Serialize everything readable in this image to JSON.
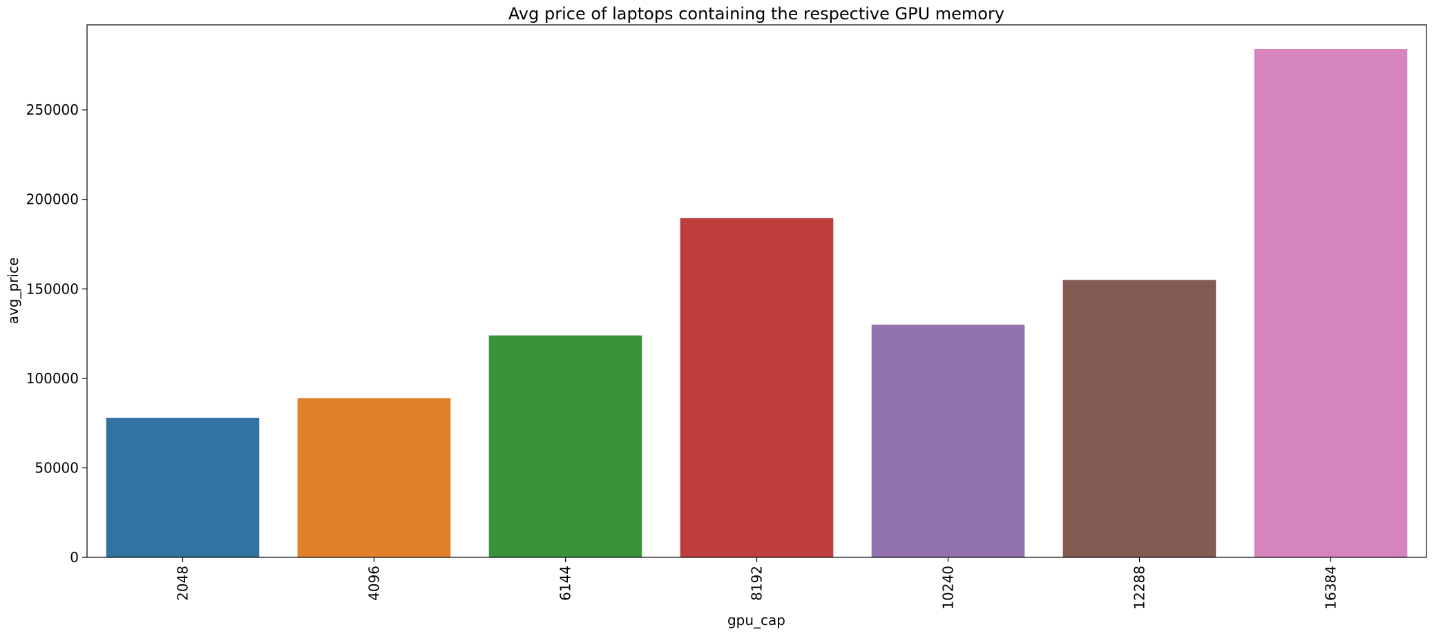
{
  "chart_data": {
    "type": "bar",
    "title": "Avg price of laptops containing the respective GPU memory",
    "xlabel": "gpu_cap",
    "ylabel": "avg_price",
    "categories": [
      "2048",
      "4096",
      "6144",
      "8192",
      "10240",
      "12288",
      "16384"
    ],
    "values": [
      78000,
      89000,
      124000,
      189500,
      130000,
      155000,
      284000
    ],
    "colors": [
      "#3274a1",
      "#e1812c",
      "#3a923a",
      "#c03d3e",
      "#9372b2",
      "#845b53",
      "#d684bd"
    ],
    "ylim": [
      0,
      297500
    ],
    "yticks": [
      0,
      50000,
      100000,
      150000,
      200000,
      250000
    ],
    "ytick_labels": [
      "0",
      "50000",
      "100000",
      "150000",
      "200000",
      "250000"
    ],
    "grid": false,
    "legend": "none"
  }
}
